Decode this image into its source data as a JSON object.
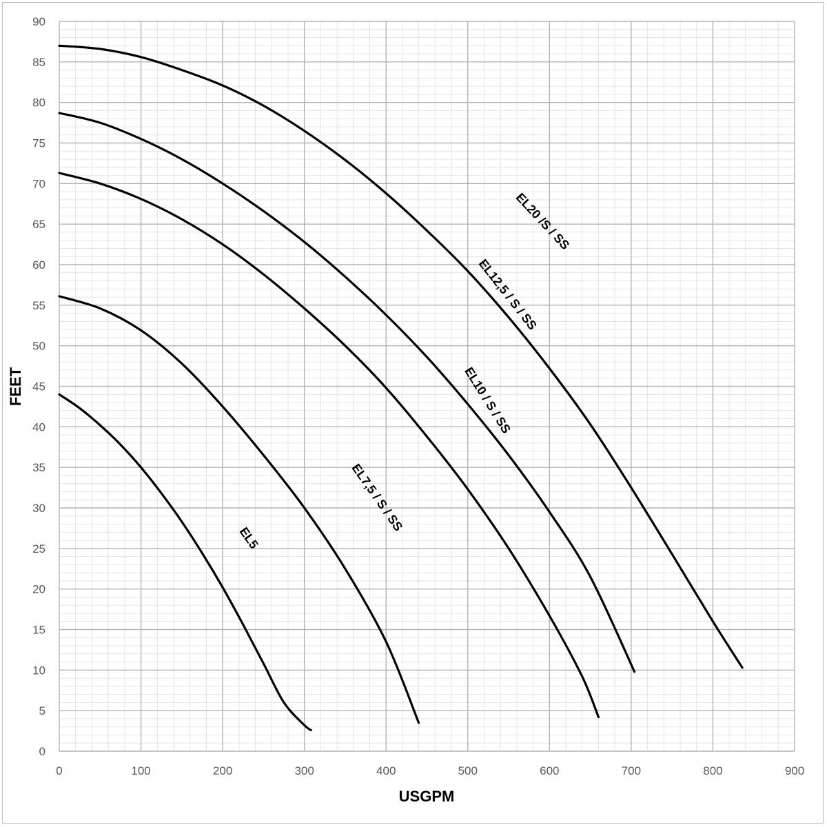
{
  "chart_data": {
    "type": "line",
    "xlabel": "USGPM",
    "ylabel": "FEET",
    "xlim": [
      0,
      900
    ],
    "ylim": [
      0,
      90
    ],
    "x_major_step": 100,
    "y_major_step": 5,
    "x_minor_step": 20,
    "y_minor_step": 1,
    "grid": true,
    "x_ticks": [
      "0",
      "100",
      "200",
      "300",
      "400",
      "500",
      "600",
      "700",
      "800",
      "900"
    ],
    "y_ticks": [
      "0",
      "5",
      "10",
      "15",
      "20",
      "25",
      "30",
      "35",
      "40",
      "45",
      "50",
      "55",
      "60",
      "65",
      "70",
      "75",
      "80",
      "85",
      "90"
    ],
    "series": [
      {
        "name": "EL5",
        "x": [
          0,
          25,
          50,
          75,
          100,
          125,
          150,
          175,
          200,
          225,
          250,
          275,
          300,
          308
        ],
        "y": [
          44.0,
          42.3,
          40.2,
          37.8,
          35.0,
          31.8,
          28.3,
          24.4,
          20.2,
          15.6,
          10.8,
          6.0,
          3.2,
          2.6
        ],
        "label": {
          "text": "EL5",
          "x": 228,
          "y": 26,
          "angle": 55
        }
      },
      {
        "name": "EL7,5 / S / SS",
        "x": [
          0,
          50,
          100,
          150,
          200,
          250,
          300,
          350,
          400,
          440
        ],
        "y": [
          56.1,
          54.6,
          51.9,
          47.8,
          42.5,
          36.5,
          30.0,
          22.5,
          13.5,
          3.5
        ],
        "label": {
          "text": "EL7,5 / S / SS",
          "x": 385,
          "y": 31,
          "angle": 55
        }
      },
      {
        "name": "EL10 / S / SS",
        "x": [
          0,
          50,
          100,
          150,
          200,
          250,
          300,
          350,
          400,
          450,
          500,
          550,
          600,
          640,
          660
        ],
        "y": [
          71.3,
          70.0,
          68.1,
          65.6,
          62.5,
          58.8,
          54.6,
          50.0,
          44.8,
          38.8,
          32.3,
          25.0,
          16.7,
          9.2,
          4.2
        ],
        "label": {
          "text": "EL10 / S / SS",
          "x": 520,
          "y": 43,
          "angle": 58
        }
      },
      {
        "name": "EL12,5 / S / SS",
        "x": [
          0,
          50,
          100,
          150,
          200,
          250,
          300,
          350,
          400,
          450,
          500,
          550,
          600,
          650,
          704
        ],
        "y": [
          78.7,
          77.5,
          75.5,
          73.0,
          70.0,
          66.6,
          62.8,
          58.5,
          53.8,
          48.6,
          42.8,
          36.5,
          29.5,
          21.5,
          9.8
        ],
        "label": {
          "text": "EL12,5 / S / SS",
          "x": 545,
          "y": 56,
          "angle": 52
        }
      },
      {
        "name": "EL20 /S / SS",
        "x": [
          0,
          50,
          100,
          150,
          200,
          250,
          300,
          350,
          400,
          450,
          500,
          550,
          600,
          650,
          700,
          750,
          800,
          836
        ],
        "y": [
          87.0,
          86.6,
          85.6,
          84.0,
          82.1,
          79.6,
          76.5,
          72.9,
          68.8,
          64.2,
          59.2,
          53.5,
          47.2,
          40.3,
          32.5,
          24.3,
          16.0,
          10.3
        ],
        "label": {
          "text": "EL20 /S / SS",
          "x": 588,
          "y": 65,
          "angle": 47
        }
      }
    ]
  }
}
